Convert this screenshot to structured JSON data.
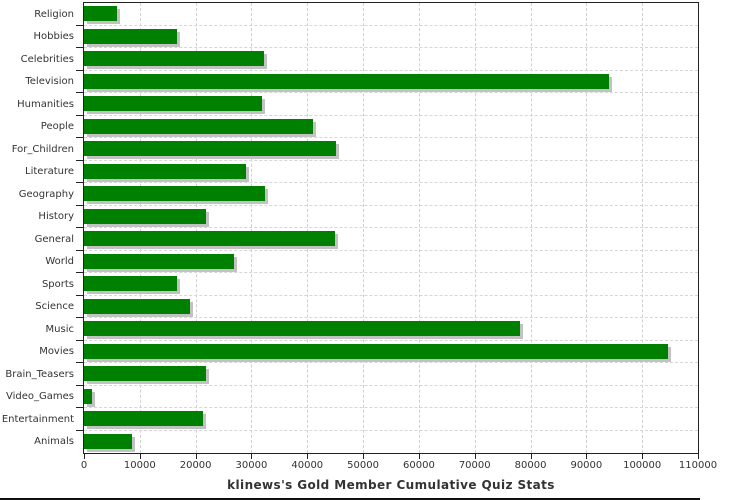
{
  "colors": {
    "bar_fill": "#008000",
    "bar_shadow": "#c2c2c2",
    "grid": "#d6d6d6",
    "plot_border": "#222222",
    "text": "#333333",
    "background": "#ffffff"
  },
  "chart_data": {
    "type": "bar",
    "orientation": "horizontal",
    "title": "klinews's Gold Member Cumulative Quiz Stats",
    "xlabel": "",
    "ylabel": "",
    "grid": true,
    "legend": null,
    "xlim": [
      0,
      110000
    ],
    "x_ticks": [
      0,
      10000,
      20000,
      30000,
      40000,
      50000,
      60000,
      70000,
      80000,
      90000,
      100000,
      110000
    ],
    "categories": [
      "Religion",
      "Hobbies",
      "Celebrities",
      "Television",
      "Humanities",
      "People",
      "For_Children",
      "Literature",
      "Geography",
      "History",
      "General",
      "World",
      "Sports",
      "Science",
      "Music",
      "Movies",
      "Brain_Teasers",
      "Video_Games",
      "Entertainment",
      "Animals"
    ],
    "values": [
      6000,
      16700,
      32300,
      94100,
      31800,
      41000,
      45100,
      29100,
      32500,
      21900,
      44900,
      26800,
      16600,
      19000,
      78100,
      104700,
      21800,
      1500,
      21400,
      8600
    ]
  }
}
